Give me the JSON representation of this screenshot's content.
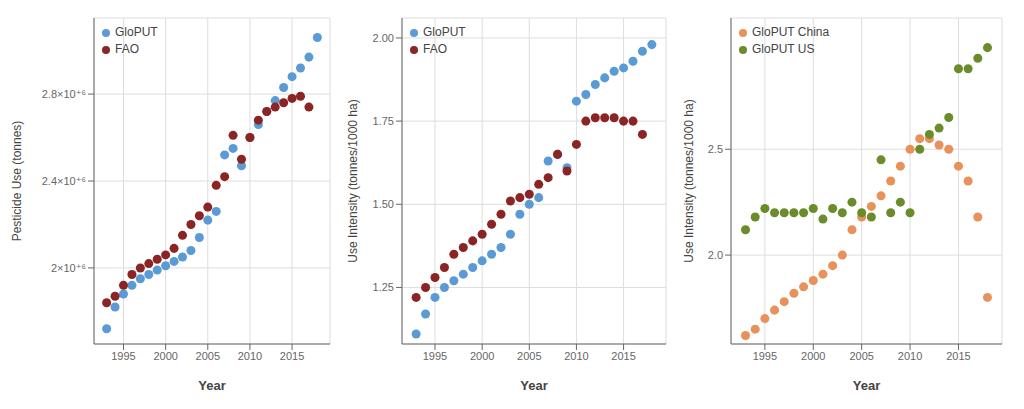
{
  "chart_data": [
    {
      "type": "scatter",
      "xlabel": "Year",
      "ylabel": "Pesticide Use (tonnes)",
      "series": [
        {
          "name": "GloPUT",
          "color": "#5B9BD5",
          "x": [
            1993,
            1994,
            1995,
            1996,
            1997,
            1998,
            1999,
            2000,
            2001,
            2002,
            2003,
            2004,
            2005,
            2006,
            2007,
            2008,
            2009,
            2010,
            2011,
            2012,
            2013,
            2014,
            2015,
            2016,
            2017,
            2018
          ],
          "values": [
            1720000,
            1820000,
            1880000,
            1920000,
            1950000,
            1970000,
            1990000,
            2010000,
            2030000,
            2050000,
            2080000,
            2140000,
            2220000,
            2260000,
            2520000,
            2550000,
            2470000,
            2600000,
            2660000,
            2720000,
            2770000,
            2830000,
            2880000,
            2920000,
            2970000,
            3060000
          ]
        },
        {
          "name": "FAO",
          "color": "#8B2525",
          "x": [
            1993,
            1994,
            1995,
            1996,
            1997,
            1998,
            1999,
            2000,
            2001,
            2002,
            2003,
            2004,
            2005,
            2006,
            2007,
            2008,
            2009,
            2010,
            2011,
            2012,
            2013,
            2014,
            2015,
            2016,
            2017
          ],
          "values": [
            1840000,
            1870000,
            1920000,
            1970000,
            2000000,
            2020000,
            2040000,
            2060000,
            2090000,
            2150000,
            2200000,
            2240000,
            2280000,
            2380000,
            2420000,
            2610000,
            2500000,
            2600000,
            2680000,
            2720000,
            2740000,
            2760000,
            2780000,
            2790000,
            2740000
          ]
        }
      ],
      "xlim": [
        1991.5,
        2019.5
      ],
      "xticks": [
        1995,
        2000,
        2005,
        2010,
        2015
      ],
      "ylim": [
        1650000,
        3150000
      ],
      "yticks": [
        {
          "value": 2000000,
          "label": "2×10⁺⁶"
        },
        {
          "value": 2400000,
          "label": "2.4×10⁺⁶"
        },
        {
          "value": 2800000,
          "label": "2.8×10⁺⁶"
        }
      ],
      "grid": true,
      "legend": "upper left"
    },
    {
      "type": "scatter",
      "xlabel": "Year",
      "ylabel": "Use Intensity (tonnes/1000 ha)",
      "series": [
        {
          "name": "GloPUT",
          "color": "#5B9BD5",
          "x": [
            1993,
            1994,
            1995,
            1996,
            1997,
            1998,
            1999,
            2000,
            2001,
            2002,
            2003,
            2004,
            2005,
            2006,
            2007,
            2008,
            2009,
            2010,
            2011,
            2012,
            2013,
            2014,
            2015,
            2016,
            2017,
            2018
          ],
          "values": [
            1.11,
            1.17,
            1.22,
            1.25,
            1.27,
            1.29,
            1.31,
            1.33,
            1.35,
            1.37,
            1.41,
            1.47,
            1.5,
            1.52,
            1.63,
            1.65,
            1.61,
            1.81,
            1.83,
            1.86,
            1.88,
            1.9,
            1.91,
            1.93,
            1.96,
            1.98
          ]
        },
        {
          "name": "FAO",
          "color": "#8B2525",
          "x": [
            1993,
            1994,
            1995,
            1996,
            1997,
            1998,
            1999,
            2000,
            2001,
            2002,
            2003,
            2004,
            2005,
            2006,
            2007,
            2008,
            2009,
            2010,
            2011,
            2012,
            2013,
            2014,
            2015,
            2016,
            2017
          ],
          "values": [
            1.22,
            1.25,
            1.28,
            1.31,
            1.35,
            1.37,
            1.39,
            1.41,
            1.44,
            1.47,
            1.51,
            1.52,
            1.53,
            1.56,
            1.58,
            1.65,
            1.6,
            1.68,
            1.75,
            1.76,
            1.76,
            1.76,
            1.75,
            1.75,
            1.71
          ]
        }
      ],
      "xlim": [
        1991.5,
        2019.5
      ],
      "xticks": [
        1995,
        2000,
        2005,
        2010,
        2015
      ],
      "ylim": [
        1.08,
        2.06
      ],
      "yticks": [
        1.25,
        {
          "value": 1.5,
          "label": "1.50"
        },
        1.75,
        {
          "value": 2,
          "label": "2.00"
        }
      ],
      "grid": true,
      "legend": "upper left"
    },
    {
      "type": "scatter",
      "xlabel": "Year",
      "ylabel": "Use Intensity (tonnes/1000 ha)",
      "series": [
        {
          "name": "GloPUT China",
          "color": "#E8915A",
          "x": [
            1993,
            1994,
            1995,
            1996,
            1997,
            1998,
            1999,
            2000,
            2001,
            2002,
            2003,
            2004,
            2005,
            2006,
            2007,
            2008,
            2009,
            2010,
            2011,
            2012,
            2013,
            2014,
            2015,
            2016,
            2017,
            2018
          ],
          "values": [
            1.62,
            1.65,
            1.7,
            1.74,
            1.78,
            1.82,
            1.85,
            1.88,
            1.91,
            1.95,
            2.0,
            2.12,
            2.18,
            2.23,
            2.28,
            2.35,
            2.42,
            2.5,
            2.55,
            2.55,
            2.52,
            2.5,
            2.42,
            2.35,
            2.18,
            1.8
          ]
        },
        {
          "name": "GloPUT US",
          "color": "#6B8C2A",
          "x": [
            1993,
            1994,
            1995,
            1996,
            1997,
            1998,
            1999,
            2000,
            2001,
            2002,
            2003,
            2004,
            2005,
            2006,
            2007,
            2008,
            2009,
            2010,
            2011,
            2012,
            2013,
            2014,
            2015,
            2016,
            2017,
            2018
          ],
          "values": [
            2.12,
            2.18,
            2.22,
            2.2,
            2.2,
            2.2,
            2.2,
            2.22,
            2.17,
            2.22,
            2.2,
            2.25,
            2.2,
            2.18,
            2.45,
            2.2,
            2.25,
            2.2,
            2.5,
            2.57,
            2.6,
            2.65,
            2.88,
            2.88,
            2.93,
            2.98
          ]
        }
      ],
      "xlim": [
        1991.5,
        2019.5
      ],
      "xticks": [
        1995,
        2000,
        2005,
        2010,
        2015
      ],
      "ylim": [
        1.58,
        3.12
      ],
      "yticks": [
        {
          "value": 2,
          "label": "2.0"
        },
        2.5
      ],
      "grid": true,
      "legend": "upper left"
    }
  ]
}
